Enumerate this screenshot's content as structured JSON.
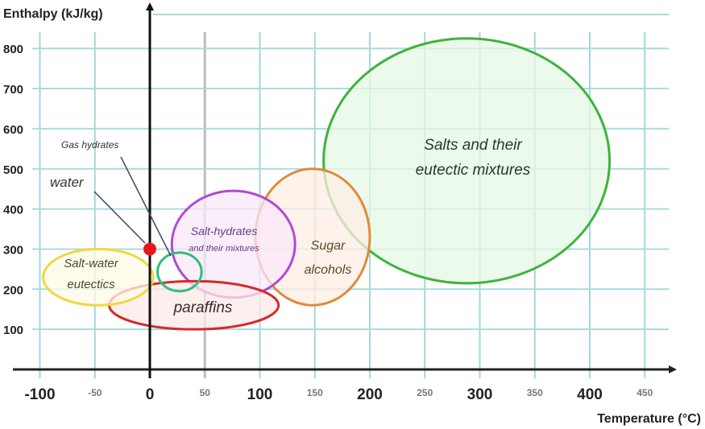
{
  "chart_data": {
    "type": "bubble-diagram",
    "ylabel": "Enthalpy (kJ/kg)",
    "xlabel": "Temperature (°C)",
    "xlim": [
      -120,
      480
    ],
    "ylim": [
      0,
      850
    ],
    "grid": true,
    "x_ticks": [
      {
        "value": -100,
        "label": "-100",
        "major": true
      },
      {
        "value": -50,
        "label": "-50",
        "major": false
      },
      {
        "value": 0,
        "label": "0",
        "major": true
      },
      {
        "value": 50,
        "label": "50",
        "major": false
      },
      {
        "value": 100,
        "label": "100",
        "major": true
      },
      {
        "value": 150,
        "label": "150",
        "major": false
      },
      {
        "value": 200,
        "label": "200",
        "major": true
      },
      {
        "value": 250,
        "label": "250",
        "major": false
      },
      {
        "value": 300,
        "label": "300",
        "major": true
      },
      {
        "value": 350,
        "label": "350",
        "major": false
      },
      {
        "value": 400,
        "label": "400",
        "major": true
      },
      {
        "value": 450,
        "label": "450",
        "major": false
      }
    ],
    "y_ticks": [
      100,
      200,
      300,
      400,
      500,
      600,
      700,
      800
    ],
    "regions": [
      {
        "name": "Salts and their eutectic mixtures",
        "lines": [
          "Salts and their",
          "eutectic mixtures"
        ],
        "cx": 288,
        "cy": 520,
        "rx": 130,
        "ry": 305,
        "stroke": "#3cb43c",
        "fill": "#e6f8e4",
        "text_color": "#2a3a2a"
      },
      {
        "name": "Sugar alcohols",
        "lines": [
          "Sugar",
          "alcohols"
        ],
        "cx": 148,
        "cy": 330,
        "rx": 52,
        "ry": 170,
        "stroke": "#e08a3a",
        "fill": "#fdeee4",
        "text_color": "#5a4a2a"
      },
      {
        "name": "Salt-hydrates and their mixtures",
        "lines": [
          "Salt-hydrates",
          "and their mixtures"
        ],
        "cx": 76,
        "cy": 312,
        "rx": 56,
        "ry": 133,
        "stroke": "#b04ad0",
        "fill": "#f9e8f9",
        "text_color": "#6a3a8a"
      },
      {
        "name": "paraffins",
        "lines": [
          "paraffins"
        ],
        "cx": 40,
        "cy": 160,
        "rx": 77,
        "ry": 60,
        "stroke": "#d42a2a",
        "fill": "#fdeaea",
        "text_color": "#3a2a2a"
      },
      {
        "name": "Gas hydrates",
        "lines": [],
        "cx": 27,
        "cy": 243,
        "rx": 20,
        "ry": 48,
        "stroke": "#2cc07a",
        "fill": "none",
        "text_color": "#333"
      },
      {
        "name": "Salt-water eutectics",
        "lines": [
          "Salt-water",
          "eutectics"
        ],
        "cx": -47,
        "cy": 230,
        "rx": 50,
        "ry": 70,
        "stroke": "#f0d840",
        "fill": "#fffbe8",
        "text_color": "#4a4a2a"
      }
    ],
    "points": [
      {
        "name": "water",
        "x": 0,
        "y": 300,
        "color": "#e81818"
      }
    ],
    "annotations": [
      {
        "text": "water",
        "target": "water"
      },
      {
        "text": "Gas hydrates",
        "target": "Gas hydrates"
      }
    ]
  }
}
